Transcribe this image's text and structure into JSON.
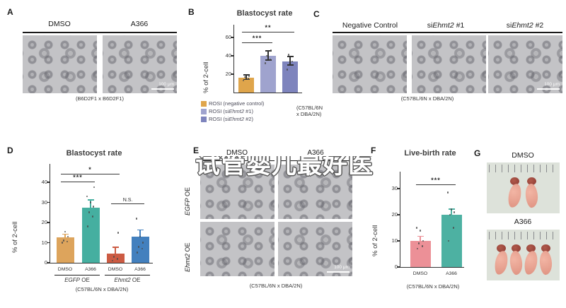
{
  "watermark": {
    "text": "试管婴儿最好医"
  },
  "panels": {
    "A": {
      "letter": "A",
      "col1": "DMSO",
      "col2": "A366",
      "caption": "(B6D2F1 x B6D2F1)",
      "scale_bar": "100 μm"
    },
    "B": {
      "letter": "B",
      "title": "Blastocyst rate",
      "ylabel": "% of 2-cell",
      "legend": [
        {
          "pre": "ROSI (negative control)",
          "italic": "",
          "post": ""
        },
        {
          "pre": "ROSI (si",
          "italic": "Ehmt2",
          "post": " #1)"
        },
        {
          "pre": "ROSI (si",
          "italic": "Ehmt2",
          "post": " #2)"
        }
      ],
      "strain_line1": "(C57BL/6N",
      "strain_line2": "x DBA/2N)"
    },
    "C": {
      "letter": "C",
      "headers": [
        {
          "pre": "Negative Control",
          "italic": "",
          "post": ""
        },
        {
          "pre": "si",
          "italic": "Ehmt2",
          "post": " #1"
        },
        {
          "pre": "si",
          "italic": "Ehmt2",
          "post": " #2"
        }
      ],
      "caption": "(C57BL/6N x DBA/2N)",
      "scale_bar": "100 μm"
    },
    "D": {
      "letter": "D",
      "title": "Blastocyst rate",
      "ylabel": "% of 2-cell",
      "groups": [
        {
          "italic": "EGFP",
          "post": " OE"
        },
        {
          "italic": "Ehmt2",
          "post": " OE"
        }
      ],
      "caption": "(C57BL/6N x DBA/2N)"
    },
    "E": {
      "letter": "E",
      "col1": "DMSO",
      "col2": "A366",
      "rows": [
        {
          "italic": "EGFP",
          "post": " OE"
        },
        {
          "italic": "Ehmt2",
          "post": " OE"
        }
      ],
      "caption": "(C57BL/6N x DBA/2N)",
      "scale_bar": "100 μm"
    },
    "F": {
      "letter": "F",
      "title": "Live-birth rate",
      "ylabel": "% of 2-cell",
      "caption": "(C57BL/6N x DBA/2N)"
    },
    "G": {
      "letter": "G",
      "top_label": "DMSO",
      "bottom_label": "A366"
    }
  },
  "chart_data": [
    {
      "id": "B",
      "type": "bar",
      "title": "Blastocyst rate",
      "ylabel": "% of 2-cell",
      "categories": [
        "ROSI (negative control)",
        "ROSI (siEhmt2 #1)",
        "ROSI (siEhmt2 #2)"
      ],
      "values": [
        16,
        40,
        34
      ],
      "errors": [
        2.5,
        5,
        4.5
      ],
      "dots": [
        [
          13,
          15,
          17,
          18
        ],
        [
          32,
          36,
          40,
          46
        ],
        [
          25,
          34,
          41
        ]
      ],
      "colors": [
        "#DFA54B",
        "#9FA3CE",
        "#7E84BD"
      ],
      "error_color": "#333",
      "ylim": [
        0,
        60
      ],
      "yticks": [
        20,
        40,
        60
      ],
      "significance": [
        {
          "from": 0,
          "to": 1,
          "label": "***"
        },
        {
          "from": 0,
          "to": 2,
          "label": "**"
        }
      ],
      "strain": "(C57BL/6N x DBA/2N)",
      "legend_position": "bottom"
    },
    {
      "id": "D",
      "type": "bar",
      "title": "Blastocyst rate",
      "ylabel": "% of 2-cell",
      "categories": [
        "DMSO",
        "A366",
        "DMSO",
        "A366"
      ],
      "group_labels": [
        "EGFP OE",
        "Ehmt2 OE"
      ],
      "values": [
        12.5,
        27.5,
        4.5,
        13
      ],
      "errors": [
        1.5,
        3.5,
        3,
        3
      ],
      "dots": [
        [
          10,
          10.5,
          11,
          13,
          15.5
        ],
        [
          18,
          23,
          25,
          28,
          30,
          33,
          37.5
        ],
        [
          1,
          2,
          3,
          15
        ],
        [
          5,
          7,
          8,
          10,
          13,
          22
        ]
      ],
      "colors": [
        "#DDA45C",
        "#45AFA0",
        "#CC5B43",
        "#4380BE"
      ],
      "error_color": "bar",
      "ylim": [
        0,
        40
      ],
      "yticks": [
        0,
        10,
        20,
        30,
        40
      ],
      "significance": [
        {
          "from": 0,
          "to": 1,
          "label": "***"
        },
        {
          "from": 0,
          "to": 2,
          "label": "*"
        },
        {
          "from": 2,
          "to": 3,
          "label": "N.S."
        }
      ],
      "strain": "(C57BL/6N x DBA/2N)"
    },
    {
      "id": "F",
      "type": "bar",
      "title": "Live-birth rate",
      "ylabel": "% of 2-cell",
      "categories": [
        "DMSO",
        "A366"
      ],
      "values": [
        10,
        20
      ],
      "errors": [
        1.5,
        2
      ],
      "dots": [
        [
          7,
          8,
          9,
          10,
          14,
          15
        ],
        [
          10,
          15,
          20,
          21,
          22,
          28.5
        ]
      ],
      "colors": [
        "#EC9097",
        "#4DB1A2"
      ],
      "error_color": "bar",
      "ylim": [
        0,
        30
      ],
      "yticks": [
        0,
        10,
        20,
        30
      ],
      "significance": [
        {
          "from": 0,
          "to": 1,
          "label": "***"
        }
      ],
      "strain": "(C57BL/6N x DBA/2N)"
    }
  ]
}
